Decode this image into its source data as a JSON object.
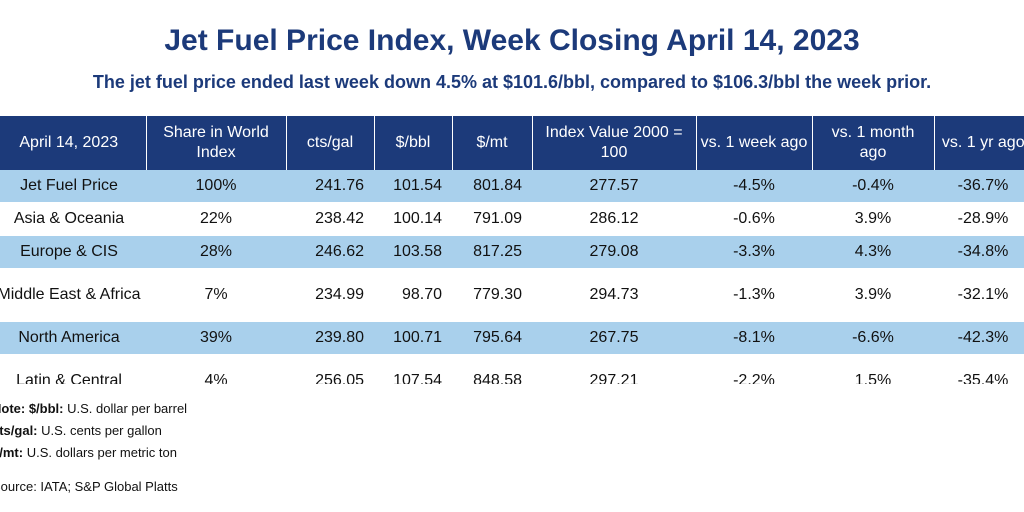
{
  "title": "Jet Fuel Price Index, Week Closing April 14, 2023",
  "subtitle": "The jet fuel price ended last week down 4.5% at $101.6/bbl, compared to $106.3/bbl the week prior.",
  "colors": {
    "header_bg": "#1c3a7a",
    "title_text": "#1c3a7a",
    "row_highlight": "#a9d0ec"
  },
  "table": {
    "headers": [
      "April 14, 2023",
      "Share in World Index",
      "cts/gal",
      "$/bbl",
      "$/mt",
      "Index Value 2000 = 100",
      "vs. 1 week ago",
      "vs. 1 month ago",
      "vs. 1 yr ago"
    ],
    "rows": [
      [
        "Jet Fuel Price",
        "100%",
        "241.76",
        "101.54",
        "801.84",
        "277.57",
        "-4.5%",
        "-0.4%",
        "-36.7%"
      ],
      [
        "Asia & Oceania",
        "22%",
        "238.42",
        "100.14",
        "791.09",
        "286.12",
        "-0.6%",
        "3.9%",
        "-28.9%"
      ],
      [
        "Europe & CIS",
        "28%",
        "246.62",
        "103.58",
        "817.25",
        "279.08",
        "-3.3%",
        "4.3%",
        "-34.8%"
      ],
      [
        "Middle East & Africa",
        "7%",
        "234.99",
        "98.70",
        "779.30",
        "294.73",
        "-1.3%",
        "3.9%",
        "-32.1%"
      ],
      [
        "North America",
        "39%",
        "239.80",
        "100.71",
        "795.64",
        "267.75",
        "-8.1%",
        "-6.6%",
        "-42.3%"
      ],
      [
        "Latin & Central",
        "4%",
        "256.05",
        "107.54",
        "848.58",
        "297.21",
        "-2.2%",
        "1.5%",
        "-35.4%"
      ]
    ]
  },
  "notes": {
    "bbl_label": "Note: $/bbl:",
    "bbl_text": "U.S. dollar per barrel",
    "gal_label": "cts/gal:",
    "gal_text": "U.S. cents per gallon",
    "mt_label": "$/mt:",
    "mt_text": "U.S. dollars per metric ton",
    "source": "Source: IATA; S&P Global Platts"
  }
}
